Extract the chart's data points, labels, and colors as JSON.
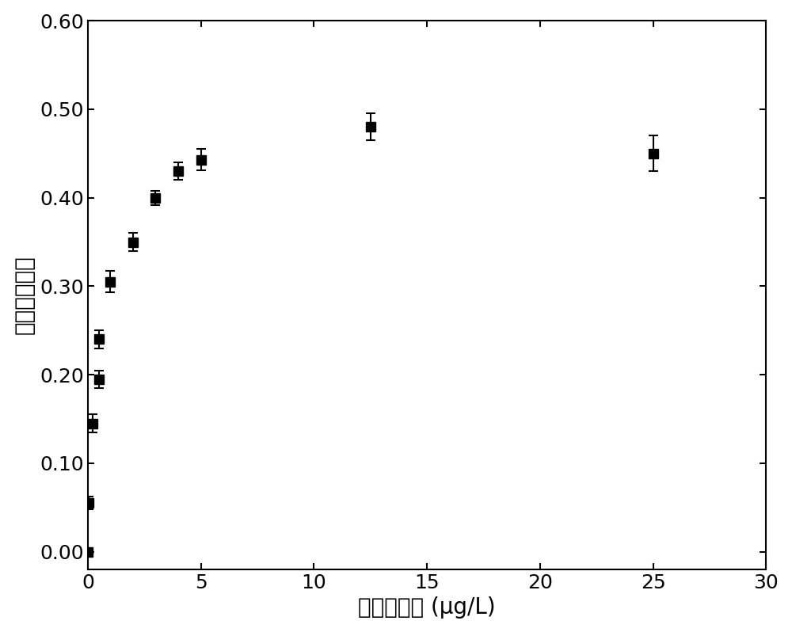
{
  "x": [
    0,
    0.05,
    0.2,
    0.5,
    0.5,
    1.0,
    2.0,
    3.0,
    4.0,
    5.0,
    12.5,
    25.0
  ],
  "y": [
    0.0,
    0.055,
    0.145,
    0.195,
    0.24,
    0.305,
    0.35,
    0.4,
    0.43,
    0.443,
    0.48,
    0.45
  ],
  "yerr": [
    0.004,
    0.007,
    0.01,
    0.01,
    0.01,
    0.012,
    0.01,
    0.008,
    0.01,
    0.012,
    0.015,
    0.02
  ],
  "xlabel": "土霌素浓度 (μg/L)",
  "ylabel": "荧光恢复效率",
  "xlim": [
    0,
    30
  ],
  "ylim": [
    -0.02,
    0.6
  ],
  "xticks": [
    0,
    5,
    10,
    15,
    20,
    25,
    30
  ],
  "yticks": [
    0.0,
    0.1,
    0.2,
    0.3,
    0.4,
    0.5,
    0.6
  ],
  "marker_color": "#000000",
  "marker_size": 8,
  "capsize": 4,
  "linewidth": 1.5,
  "xlabel_fontsize": 20,
  "ylabel_fontsize": 20,
  "tick_fontsize": 18,
  "fig_width": 10.0,
  "fig_height": 7.98,
  "background_color": "#ffffff"
}
